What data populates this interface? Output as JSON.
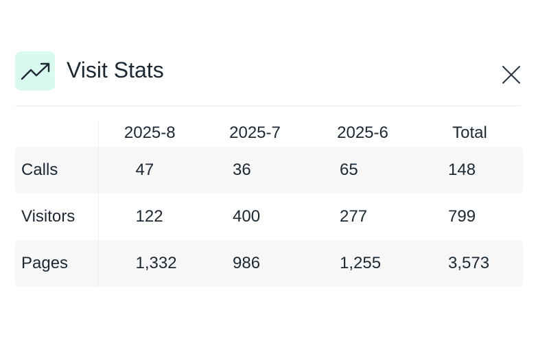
{
  "dialog": {
    "title": "Visit Stats",
    "icon": "trending-up-icon",
    "icon_tile_color": "#d9faef",
    "close_icon": "close-icon"
  },
  "table": {
    "columns": [
      "",
      "2025-8",
      "2025-7",
      "2025-6",
      "Total"
    ],
    "rows": [
      {
        "label": "Calls",
        "values": [
          "47",
          "36",
          "65",
          "148"
        ]
      },
      {
        "label": "Visitors",
        "values": [
          "122",
          "400",
          "277",
          "799"
        ]
      },
      {
        "label": "Pages",
        "values": [
          "1,332",
          "986",
          "1,255",
          "3,573"
        ]
      }
    ],
    "striped_row_color": "#f7f7f7"
  }
}
